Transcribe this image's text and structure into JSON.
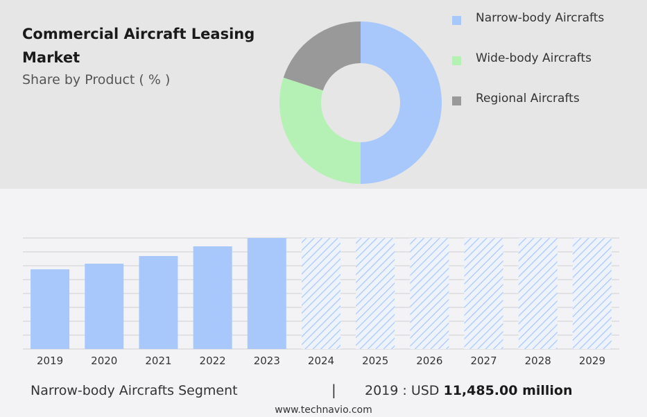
{
  "header": {
    "title": "Commercial Aircraft Leasing Market",
    "subtitle": "Share by Product ( % )"
  },
  "colors": {
    "narrow_body": "#a8c8fb",
    "wide_body": "#b5f0b5",
    "regional": "#999999",
    "forecast_hatch": "#a8c8fb"
  },
  "chart_data": [
    {
      "type": "pie",
      "variant": "donut",
      "categories": [
        "Narrow-body Aircrafts",
        "Wide-body Aircrafts",
        "Regional Aircrafts"
      ],
      "values": [
        50,
        30,
        20
      ],
      "legend": "right"
    },
    {
      "type": "bar",
      "categories": [
        "2019",
        "2020",
        "2021",
        "2022",
        "2023",
        "2024",
        "2025",
        "2026",
        "2027",
        "2028",
        "2029"
      ],
      "values": [
        11485,
        12300,
        13400,
        14800,
        16000,
        16000,
        16000,
        16000,
        16000,
        16000,
        16000
      ],
      "forecast_from": "2024",
      "grid": true
    }
  ],
  "footer": {
    "segment": "Narrow-body Aircrafts Segment",
    "separator": "|",
    "value_prefix": "2019 : USD",
    "value_amount": "11,485.00 million",
    "source": "www.technavio.com"
  }
}
